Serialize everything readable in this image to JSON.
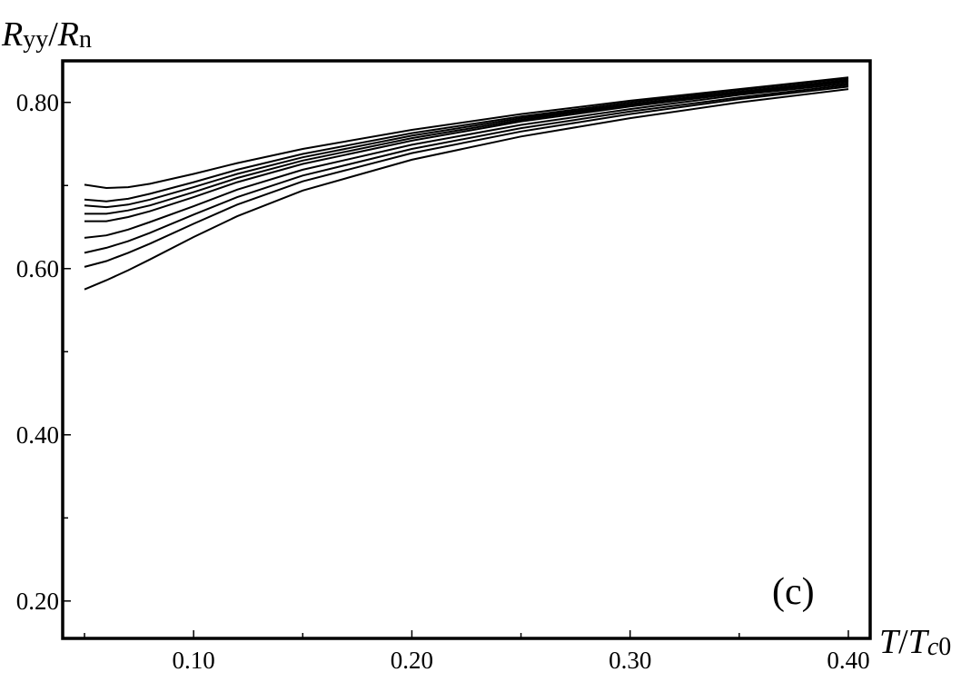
{
  "chart_data": {
    "type": "line",
    "ylabel_parts": [
      "R",
      "yy",
      "/",
      "R",
      "n"
    ],
    "xlabel_parts": [
      "T",
      "/",
      "T",
      "c",
      "0"
    ],
    "annotation": "(c)",
    "xlim": [
      0.04,
      0.41
    ],
    "ylim": [
      0.155,
      0.85
    ],
    "x_ticks": [
      0.1,
      0.2,
      0.3,
      0.4
    ],
    "x_tick_labels": [
      "0.10",
      "0.20",
      "0.30",
      "0.40"
    ],
    "x_minor_ticks": [
      0.05,
      0.15,
      0.25,
      0.35
    ],
    "y_ticks": [
      0.2,
      0.4,
      0.6,
      0.8
    ],
    "y_tick_labels": [
      "0.20",
      "0.40",
      "0.60",
      "0.80"
    ],
    "y_minor_ticks": [
      0.3,
      0.5,
      0.7
    ],
    "x": [
      0.05,
      0.06,
      0.07,
      0.08,
      0.1,
      0.12,
      0.15,
      0.2,
      0.25,
      0.3,
      0.35,
      0.4
    ],
    "series": [
      {
        "values": [
          0.701,
          0.697,
          0.698,
          0.702,
          0.714,
          0.727,
          0.744,
          0.767,
          0.786,
          0.802,
          0.816,
          0.83
        ]
      },
      {
        "values": [
          0.683,
          0.681,
          0.684,
          0.69,
          0.704,
          0.719,
          0.738,
          0.763,
          0.783,
          0.8,
          0.815,
          0.829
        ]
      },
      {
        "values": [
          0.676,
          0.674,
          0.677,
          0.683,
          0.698,
          0.714,
          0.734,
          0.76,
          0.781,
          0.798,
          0.813,
          0.827
        ]
      },
      {
        "values": [
          0.666,
          0.666,
          0.67,
          0.676,
          0.692,
          0.709,
          0.73,
          0.757,
          0.779,
          0.797,
          0.812,
          0.826
        ]
      },
      {
        "values": [
          0.657,
          0.657,
          0.662,
          0.669,
          0.686,
          0.704,
          0.726,
          0.754,
          0.777,
          0.795,
          0.811,
          0.825
        ]
      },
      {
        "values": [
          0.637,
          0.64,
          0.647,
          0.656,
          0.675,
          0.695,
          0.719,
          0.749,
          0.773,
          0.792,
          0.809,
          0.823
        ]
      },
      {
        "values": [
          0.619,
          0.625,
          0.633,
          0.643,
          0.665,
          0.686,
          0.712,
          0.744,
          0.769,
          0.789,
          0.806,
          0.821
        ]
      },
      {
        "values": [
          0.602,
          0.609,
          0.619,
          0.63,
          0.654,
          0.677,
          0.705,
          0.739,
          0.765,
          0.786,
          0.804,
          0.819
        ]
      },
      {
        "values": [
          0.575,
          0.586,
          0.598,
          0.611,
          0.638,
          0.663,
          0.694,
          0.731,
          0.759,
          0.781,
          0.8,
          0.816
        ]
      }
    ]
  }
}
